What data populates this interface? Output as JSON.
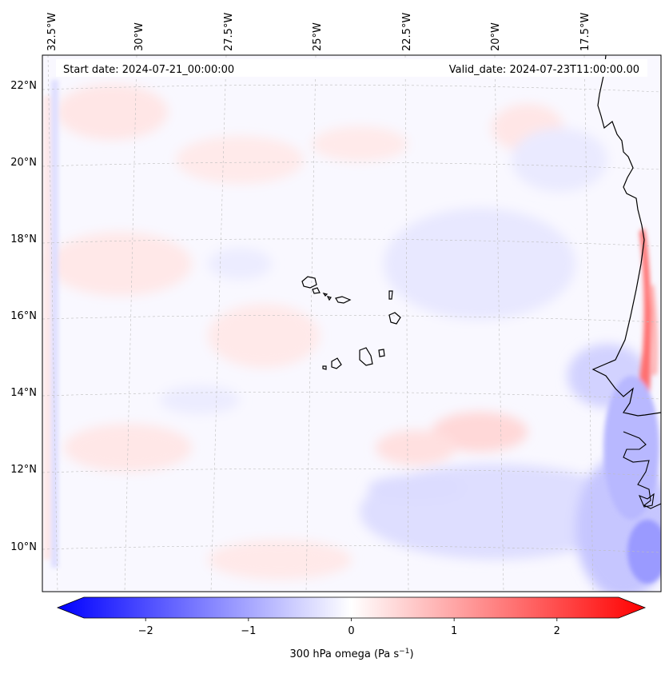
{
  "map": {
    "variable": "300 hPa omega",
    "start_date_label": "Start date: 2024-07-21_00:00:00",
    "valid_date_label": "Valid_date: 2024-07-23T11:00:00.00",
    "lon_ticks": [
      "32.5°W",
      "30°W",
      "27.5°W",
      "25°W",
      "22.5°W",
      "20°W",
      "17.5°W"
    ],
    "lat_ticks": [
      "22°N",
      "20°N",
      "18°N",
      "16°N",
      "14°N",
      "12°N",
      "10°N"
    ],
    "region": "Cape Verde islands and West African coast"
  },
  "colorbar": {
    "label": "300 hPa omega (Pa s",
    "label_superscript": "−1",
    "label_close": ")",
    "ticks": [
      "−2",
      "−1",
      "0",
      "1",
      "2"
    ],
    "tick_values": [
      -2,
      -1,
      0,
      1,
      2
    ],
    "range": [
      -2.6,
      2.6
    ],
    "colors": {
      "min": "#0000ff",
      "mid": "#ffffff",
      "max": "#ff0000"
    }
  }
}
